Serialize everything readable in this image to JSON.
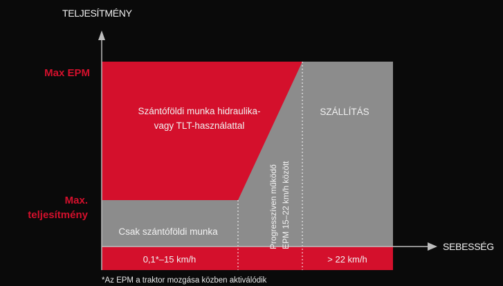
{
  "axes": {
    "y_title": "TELJESÍTMÉNY",
    "x_title": "SEBESSÉG"
  },
  "y_levels": {
    "top": "Max EPM",
    "mid_line1": "Max.",
    "mid_line2": "teljesítmény"
  },
  "regions": {
    "field_hydraulic_line1": "Szántóföldi munka hidraulika-",
    "field_hydraulic_line2": "vagy TLT-használattal",
    "field_only": "Csak szántóföldi munka",
    "transport": "SZÁLLÍTÁS",
    "progressive_line1": "Progresszíven működő",
    "progressive_line2": "EPM 15–22 km/h között"
  },
  "speed_bands": {
    "low": "0,1*–15 km/h",
    "high": "> 22 km/h"
  },
  "footnote": "*Az EPM a traktor mozgása közben aktiválódik",
  "colors": {
    "background": "#0a0a0a",
    "red": "#d4102c",
    "gray": "#8c8c8c",
    "text": "#f2f2f2"
  }
}
